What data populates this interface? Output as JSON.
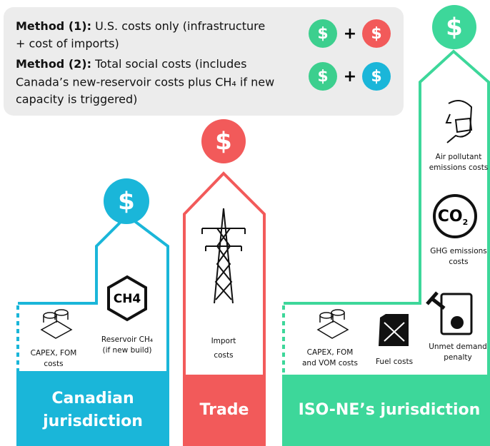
{
  "legend": {
    "method1": {
      "label": "Method (1):",
      "lines": [
        "U.S. costs only (infrastructure",
        "+ cost of imports)"
      ]
    },
    "method2": {
      "label": "Method (2):",
      "lines": [
        "Total social costs (includes",
        "Canada’s new-reservoir costs plus CH₄ if new",
        "capacity is triggered)"
      ]
    }
  },
  "symbols": {
    "dollar": "$",
    "plus": "+"
  },
  "canadian": {
    "title_lines": [
      "Canadian",
      "jurisdiction"
    ],
    "capex": [
      "CAPEX, FOM",
      "costs"
    ],
    "ch4_icon": "CH4",
    "reservoir": [
      "Reservoir CH₄",
      "(if new build)"
    ]
  },
  "trade": {
    "title": "Trade",
    "import": [
      "Import",
      "costs"
    ]
  },
  "iso": {
    "title": "ISO-NE’s jurisdiction",
    "air": [
      "Air pollutant",
      "emissions costs"
    ],
    "co2_icon": {
      "main": "CO",
      "sub": "2"
    },
    "ghg": [
      "GHG emissions",
      "costs"
    ],
    "capex": [
      "CAPEX, FOM",
      "and VOM costs"
    ],
    "fuel": "Fuel costs",
    "unmet": [
      "Unmet demand",
      "penalty"
    ]
  }
}
